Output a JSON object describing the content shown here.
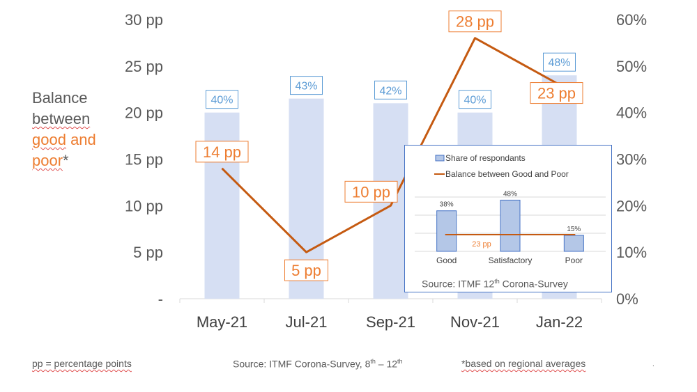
{
  "chart_data": {
    "type": "bar",
    "categories": [
      "May-21",
      "Jul-21",
      "Sep-21",
      "Nov-21",
      "Jan-22"
    ],
    "series": [
      {
        "type": "bar",
        "axis": "right",
        "values": [
          40,
          43,
          42,
          40,
          48
        ],
        "labels": [
          "40%",
          "43%",
          "42%",
          "40%",
          "48%"
        ],
        "color": "#d6dff3",
        "label_color": "#5b9bd5"
      },
      {
        "type": "line",
        "axis": "left",
        "values": [
          14,
          5,
          10,
          28,
          23
        ],
        "labels": [
          "14 pp",
          "5 pp",
          "10 pp",
          "28 pp",
          "23 pp"
        ],
        "color": "#c55a11",
        "label_color": "#ed7d31"
      }
    ],
    "ylim_left": [
      0,
      30
    ],
    "ylim_right": [
      0,
      60
    ],
    "left_ticks": [
      "-",
      "5 pp",
      "10 pp",
      "15 pp",
      "20 pp",
      "25 pp",
      "30 pp"
    ],
    "right_ticks": [
      "0%",
      "10%",
      "20%",
      "30%",
      "40%",
      "50%",
      "60%"
    ],
    "ylabel_parts": {
      "line1": "Balance",
      "line2": "between",
      "line3a": "good",
      "line3b": " and",
      "line4a": "poor",
      "line4b": "*"
    }
  },
  "inset_chart": {
    "type": "bar",
    "categories": [
      "Good",
      "Satisfactory",
      "Poor"
    ],
    "values": [
      38,
      48,
      15
    ],
    "value_labels": [
      "38%",
      "48%",
      "15%"
    ],
    "line_value_label": "23 pp",
    "legend": [
      "Share of respondants",
      "Balance between Good and Poor"
    ],
    "source": "Source: ITMF 12th Corona-Survey",
    "source_main": "Source: ITMF 12",
    "source_sup": "th",
    "source_tail": " Corona-Survey"
  },
  "footer": {
    "pp_note": "pp = percentage points",
    "source_main": "Source: ITMF Corona-Survey, 8",
    "source_sup1": "th",
    "source_mid": " – 12",
    "source_sup2": "th",
    "regional_note": "*based on regional averages",
    "dot": "."
  },
  "colors": {
    "bar": "#d6dff3",
    "line": "#c55a11",
    "label_orange": "#ed7d31",
    "label_blue": "#5b9bd5",
    "inset_bar": "#b4c7e7",
    "inset_border": "#4472c4"
  }
}
